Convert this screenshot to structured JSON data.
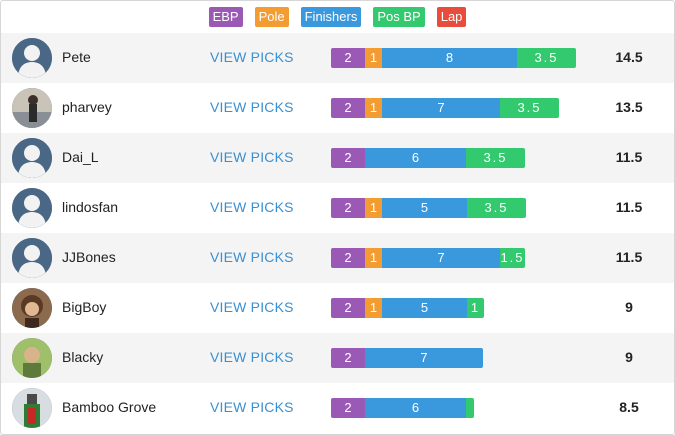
{
  "legend": [
    {
      "label": "EBP",
      "color": "#9b59b6"
    },
    {
      "label": "Pole",
      "color": "#f39c32"
    },
    {
      "label": "Finishers",
      "color": "#3a98dc"
    },
    {
      "label": "Pos BP",
      "color": "#33c96e"
    },
    {
      "label": "Lap",
      "color": "#e74c3c"
    }
  ],
  "view_label": "VIEW PICKS",
  "rows": [
    {
      "name": "Pete",
      "avatar": "default-avatar-icon",
      "ebp": 2,
      "pole": 1,
      "fin": 8,
      "pos": 3.5,
      "total": "14.5",
      "labels": {
        "ebp": "2",
        "pole": "1",
        "fin": "8",
        "pos": "3.5"
      }
    },
    {
      "name": "pharvey",
      "avatar": "photo-avatar",
      "ebp": 2,
      "pole": 1,
      "fin": 7,
      "pos": 3.5,
      "total": "13.5",
      "labels": {
        "ebp": "2",
        "pole": "1",
        "fin": "7",
        "pos": "3.5"
      }
    },
    {
      "name": "Dai_L",
      "avatar": "default-avatar-icon",
      "ebp": 2,
      "pole": 0,
      "fin": 6,
      "pos": 3.5,
      "total": "11.5",
      "labels": {
        "ebp": "2",
        "pole": "",
        "fin": "6",
        "pos": "3.5"
      }
    },
    {
      "name": "lindosfan",
      "avatar": "default-avatar-icon",
      "ebp": 2,
      "pole": 1,
      "fin": 5,
      "pos": 3.5,
      "total": "11.5",
      "labels": {
        "ebp": "2",
        "pole": "1",
        "fin": "5",
        "pos": "3.5"
      }
    },
    {
      "name": "JJBones",
      "avatar": "default-avatar-icon",
      "ebp": 2,
      "pole": 1,
      "fin": 7,
      "pos": 1.5,
      "total": "11.5",
      "labels": {
        "ebp": "2",
        "pole": "1",
        "fin": "7",
        "pos": "1.5"
      }
    },
    {
      "name": "BigBoy",
      "avatar": "photo-avatar",
      "ebp": 2,
      "pole": 1,
      "fin": 5,
      "pos": 1,
      "total": "9",
      "labels": {
        "ebp": "2",
        "pole": "1",
        "fin": "5",
        "pos": "1"
      }
    },
    {
      "name": "Blacky",
      "avatar": "photo-avatar",
      "ebp": 2,
      "pole": 0,
      "fin": 7,
      "pos": 0,
      "total": "9",
      "labels": {
        "ebp": "2",
        "pole": "",
        "fin": "7",
        "pos": ""
      }
    },
    {
      "name": "Bamboo Grove",
      "avatar": "photo-avatar",
      "ebp": 2,
      "pole": 0,
      "fin": 6,
      "pos": 0.5,
      "total": "8.5",
      "labels": {
        "ebp": "2",
        "pole": "",
        "fin": "6",
        "pos": ""
      }
    }
  ]
}
